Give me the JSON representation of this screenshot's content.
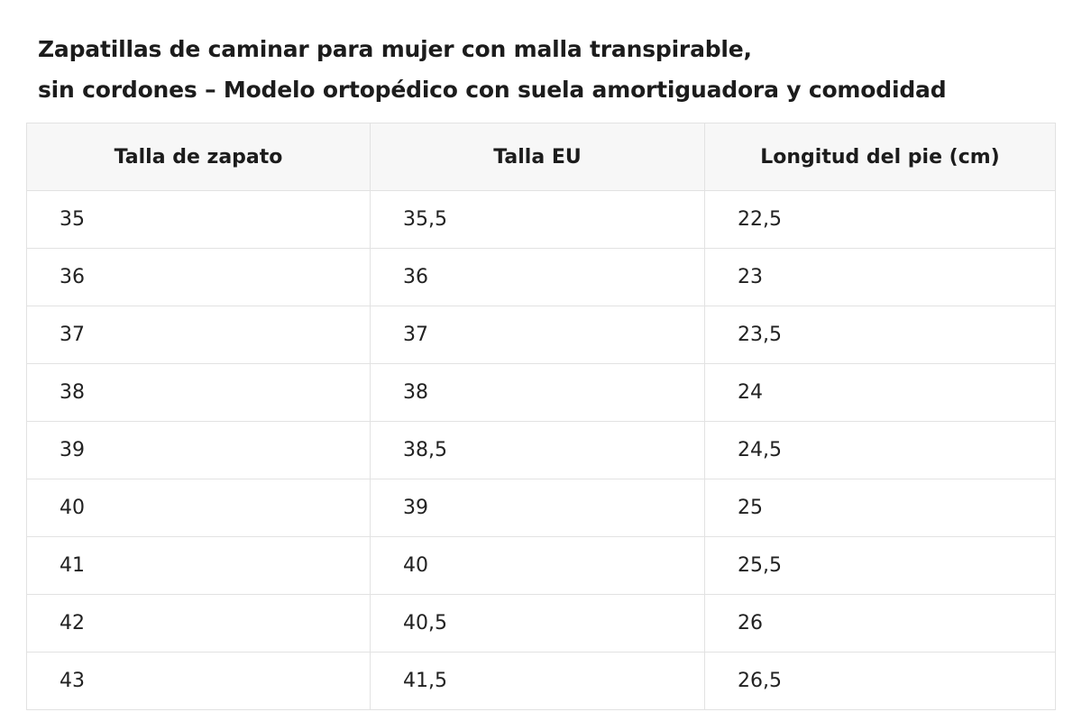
{
  "title": {
    "line1": "Zapatillas de caminar para mujer con malla transpirable,",
    "line2": "sin cordones – Modelo ortopédico con suela amortiguadora y comodidad"
  },
  "table": {
    "headers": [
      "Talla de zapato",
      "Talla EU",
      "Longitud del pie (cm)"
    ],
    "rows": [
      [
        "35",
        "35,5",
        "22,5"
      ],
      [
        "36",
        "36",
        "23"
      ],
      [
        "37",
        "37",
        "23,5"
      ],
      [
        "38",
        "38",
        "24"
      ],
      [
        "39",
        "38,5",
        "24,5"
      ],
      [
        "40",
        "39",
        "25"
      ],
      [
        "41",
        "40",
        "25,5"
      ],
      [
        "42",
        "40,5",
        "26"
      ],
      [
        "43",
        "41,5",
        "26,5"
      ]
    ]
  }
}
